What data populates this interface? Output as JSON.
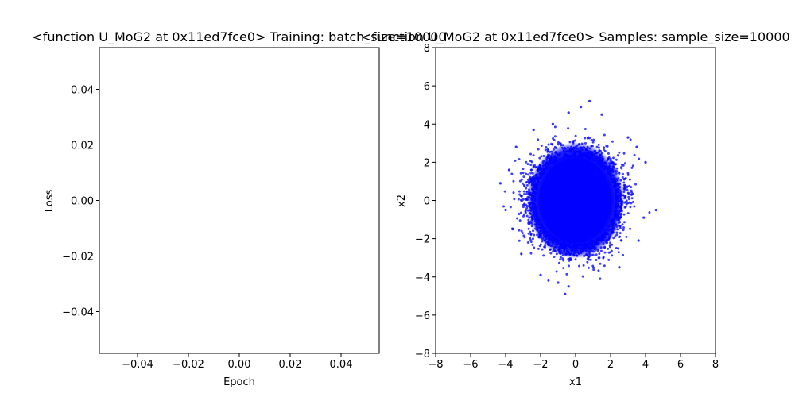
{
  "chart_data": [
    {
      "type": "line",
      "title": "<function U_MoG2 at 0x11ed7fce0> Training: batch_size=10000",
      "xlabel": "Epoch",
      "ylabel": "Loss",
      "xlim": [
        -0.055,
        0.055
      ],
      "ylim": [
        -0.055,
        0.055
      ],
      "xticks": [
        -0.04,
        -0.02,
        0.0,
        0.02,
        0.04
      ],
      "yticks": [
        -0.04,
        -0.02,
        0.0,
        0.02,
        0.04
      ],
      "xtick_labels": [
        "−0.04",
        "−0.02",
        "0.00",
        "0.02",
        "0.04"
      ],
      "ytick_labels": [
        "−0.04",
        "−0.02",
        "0.00",
        "0.02",
        "0.04"
      ],
      "series": [
        {
          "x": [],
          "y": []
        }
      ],
      "grid": false
    },
    {
      "type": "scatter",
      "title": "<function U_MoG2 at 0x11ed7fce0> Samples: sample_size=10000",
      "xlabel": "x1",
      "ylabel": "x2",
      "xlim": [
        -8,
        8
      ],
      "ylim": [
        -8,
        8
      ],
      "xticks": [
        -8,
        -6,
        -4,
        -2,
        0,
        2,
        4,
        6,
        8
      ],
      "yticks": [
        -8,
        -6,
        -4,
        -2,
        0,
        2,
        4,
        6,
        8
      ],
      "xtick_labels": [
        "−8",
        "−6",
        "−4",
        "−2",
        "0",
        "2",
        "4",
        "6",
        "8"
      ],
      "ytick_labels": [
        "−8",
        "−6",
        "−4",
        "−2",
        "0",
        "2",
        "4",
        "6",
        "8"
      ],
      "distribution": {
        "center": [
          0.0,
          0.0
        ],
        "std": [
          1.0,
          1.0
        ],
        "n": 10000
      },
      "points": [
        [
          4.6,
          -0.5
        ],
        [
          -4.3,
          0.9
        ],
        [
          0.8,
          5.2
        ],
        [
          -0.6,
          -4.9
        ],
        [
          4.0,
          2.0
        ],
        [
          -4.0,
          -0.5
        ],
        [
          -0.4,
          4.6
        ],
        [
          1.5,
          4.5
        ],
        [
          -1.3,
          4.0
        ],
        [
          3.5,
          2.8
        ],
        [
          -3.4,
          2.8
        ],
        [
          3.6,
          -2.1
        ],
        [
          -3.1,
          -2.8
        ],
        [
          1.4,
          -4.1
        ],
        [
          -1.0,
          -4.3
        ],
        [
          -3.8,
          1.6
        ],
        [
          3.9,
          -0.9
        ],
        [
          -0.4,
          -4.5
        ],
        [
          3.0,
          3.3
        ],
        [
          -2.4,
          3.7
        ],
        [
          2.5,
          -3.5
        ],
        [
          -2.0,
          -3.9
        ],
        [
          0.3,
          4.9
        ],
        [
          -3.6,
          -1.5
        ],
        [
          3.2,
          0.3
        ]
      ],
      "marker_color": "#0000ff",
      "grid": false
    }
  ]
}
